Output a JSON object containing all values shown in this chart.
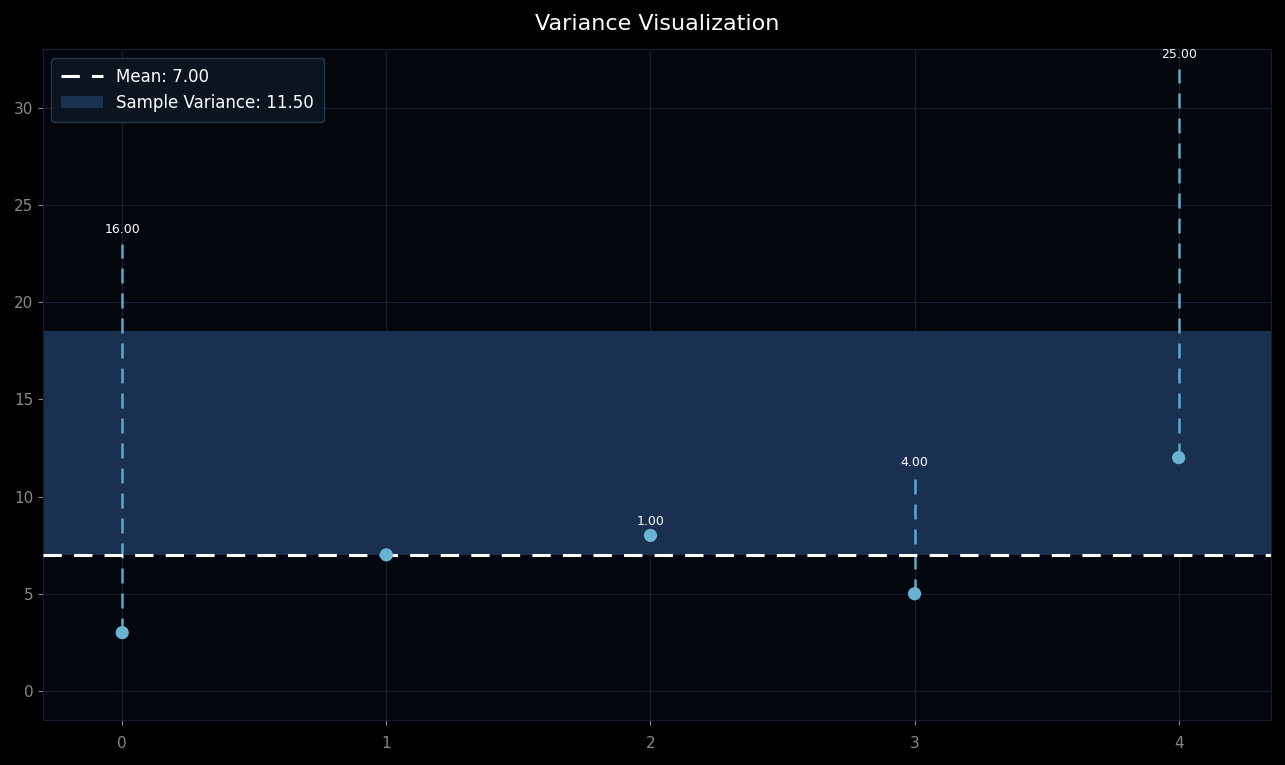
{
  "title": "Variance Visualization",
  "x_values": [
    0,
    1,
    2,
    3,
    4
  ],
  "y_values": [
    3,
    7,
    8,
    5,
    12
  ],
  "mean": 7.0,
  "sample_variance": 11.5,
  "squared_deviations": [
    16.0,
    0.0,
    1.0,
    4.0,
    25.0
  ],
  "ylim": [
    -1.5,
    33
  ],
  "xlim": [
    -0.3,
    4.35
  ],
  "bg_color": "#000000",
  "axes_bg_color": "#04060e",
  "grid_color": "#162030",
  "mean_line_color": "#ffffff",
  "point_color": "#6ab4d2",
  "dashed_line_color": "#5aaac8",
  "shade_color": "#1a3050",
  "shade_alpha": 1.0,
  "legend_bg_color": "#0d1520",
  "legend_edge_color": "#2a3a4a",
  "legend_text_color": "#ffffff",
  "title_color": "#ffffff",
  "tick_color": "#888888",
  "annot_color": "#ffffff",
  "annot_fontsize": 9,
  "title_fontsize": 16
}
